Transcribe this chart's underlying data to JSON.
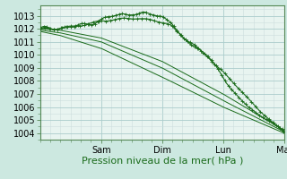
{
  "title": "Pression niveau de la mer( hPa )",
  "bg_color": "#cce8e0",
  "plot_bg_color": "#e8f4f0",
  "grid_major_color": "#aacccc",
  "grid_minor_color": "#ccdddd",
  "line_color": "#1a6b1a",
  "border_color": "#558855",
  "ylim": [
    1003.5,
    1013.8
  ],
  "yticks": [
    1004,
    1005,
    1006,
    1007,
    1008,
    1009,
    1010,
    1011,
    1012,
    1013
  ],
  "day_labels": [
    "Sam",
    "Dim",
    "Lun",
    "Mar"
  ],
  "xlabel_fontsize": 8,
  "tick_fontsize": 7
}
